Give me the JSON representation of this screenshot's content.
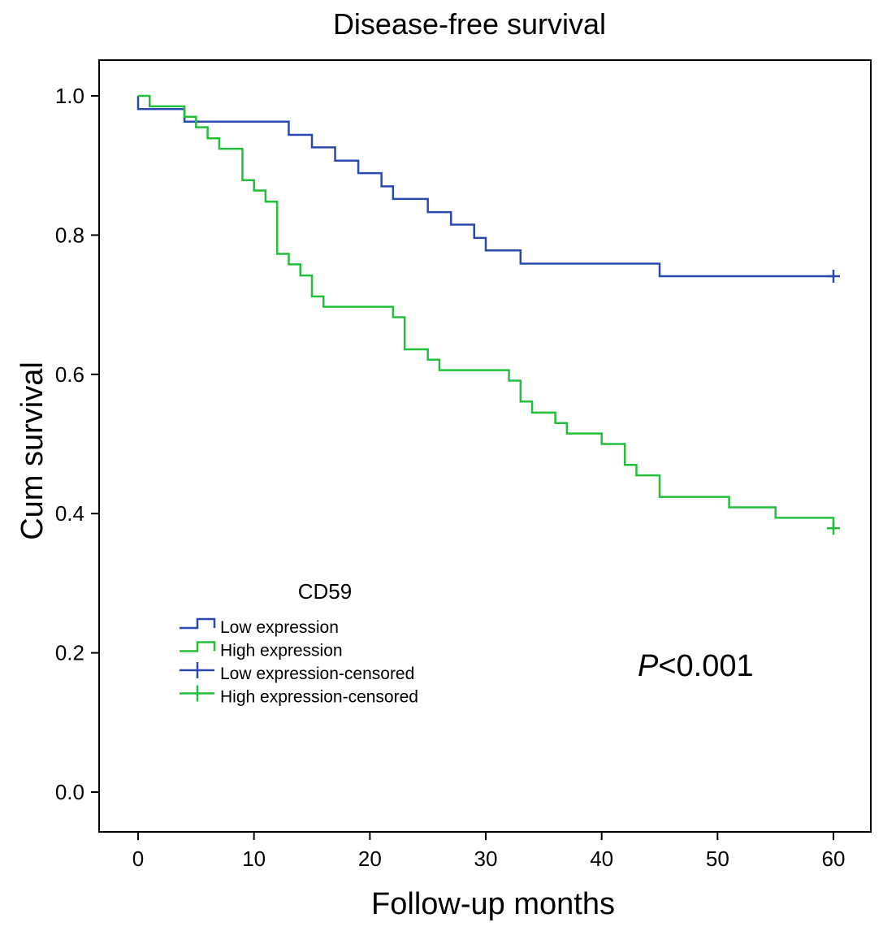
{
  "chart_data": {
    "type": "line",
    "subtype": "kaplan-meier step",
    "title": "Disease-free survival",
    "xlabel": "Follow-up months",
    "ylabel": "Cum survival",
    "xlim": [
      0,
      60
    ],
    "ylim": [
      0,
      1.0
    ],
    "xticks": [
      0,
      10,
      20,
      30,
      40,
      50,
      60
    ],
    "yticks": [
      "0.0",
      "0.2",
      "0.4",
      "0.6",
      "0.8",
      "1.0"
    ],
    "grid": false,
    "legend": {
      "title": "CD59",
      "placement": "lower-left",
      "entries": [
        {
          "label": "Low expression",
          "kind": "step",
          "color": "#2a48b0"
        },
        {
          "label": "High expression",
          "kind": "step",
          "color": "#22c03a"
        },
        {
          "label": "Low expression-censored",
          "kind": "censor",
          "color": "#2a48b0"
        },
        {
          "label": "High expression-censored",
          "kind": "censor",
          "color": "#22c03a"
        }
      ]
    },
    "annotation": {
      "italic": "P",
      "text": "<0.001"
    },
    "series": [
      {
        "name": "Low expression",
        "color": "#2a48b0",
        "steps": [
          [
            0,
            1.0
          ],
          [
            0,
            0.981
          ],
          [
            4,
            0.963
          ],
          [
            13,
            0.944
          ],
          [
            15,
            0.926
          ],
          [
            17,
            0.907
          ],
          [
            19,
            0.889
          ],
          [
            21,
            0.87
          ],
          [
            22,
            0.852
          ],
          [
            25,
            0.833
          ],
          [
            27,
            0.815
          ],
          [
            29,
            0.796
          ],
          [
            30,
            0.778
          ],
          [
            33,
            0.759
          ],
          [
            45,
            0.741
          ]
        ],
        "end": 60,
        "censored": [
          [
            60,
            0.741
          ]
        ]
      },
      {
        "name": "High expression",
        "color": "#22c03a",
        "steps": [
          [
            0,
            1.0
          ],
          [
            1,
            0.985
          ],
          [
            4,
            0.97
          ],
          [
            5,
            0.955
          ],
          [
            6,
            0.939
          ],
          [
            7,
            0.924
          ],
          [
            9,
            0.879
          ],
          [
            10,
            0.864
          ],
          [
            11,
            0.848
          ],
          [
            12,
            0.773
          ],
          [
            13,
            0.758
          ],
          [
            14,
            0.742
          ],
          [
            15,
            0.712
          ],
          [
            16,
            0.697
          ],
          [
            22,
            0.682
          ],
          [
            23,
            0.636
          ],
          [
            25,
            0.621
          ],
          [
            26,
            0.606
          ],
          [
            32,
            0.591
          ],
          [
            33,
            0.561
          ],
          [
            34,
            0.545
          ],
          [
            36,
            0.53
          ],
          [
            37,
            0.515
          ],
          [
            40,
            0.5
          ],
          [
            42,
            0.47
          ],
          [
            43,
            0.455
          ],
          [
            45,
            0.424
          ],
          [
            51,
            0.409
          ],
          [
            55,
            0.394
          ],
          [
            60,
            0.379
          ]
        ],
        "end": 60,
        "censored": [
          [
            60,
            0.379
          ]
        ]
      }
    ]
  }
}
